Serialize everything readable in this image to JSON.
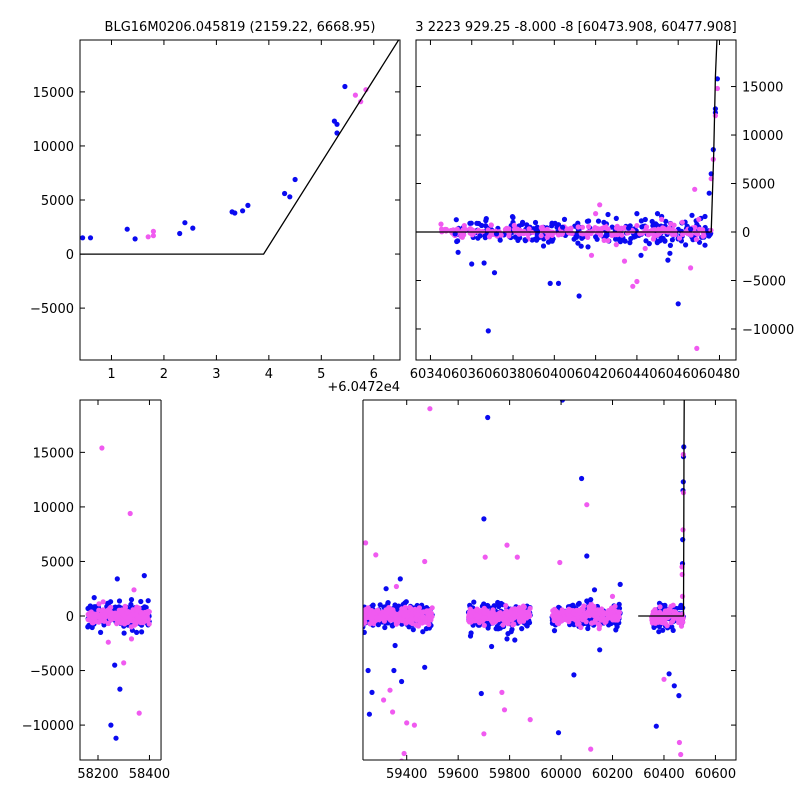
{
  "figure": {
    "background": "#ffffff",
    "colors": {
      "blue": "#0a0af0",
      "pink": "#f05af0",
      "model": "#000000"
    }
  },
  "chart_data": [
    {
      "id": "zoom",
      "type": "scatter",
      "title": "BLG16M0206.045819 (2159.22, 6668.95)",
      "xlim": [
        0.4,
        6.5
      ],
      "ylim": [
        -9800,
        19800
      ],
      "xticks": [
        1,
        2,
        3,
        4,
        5,
        6
      ],
      "xtick_labels": [
        "1",
        "2",
        "3",
        "4",
        "5",
        "6"
      ],
      "yticks": [
        -5000,
        0,
        5000,
        10000,
        15000
      ],
      "ytick_labels": [
        "−5000",
        "0",
        "5000",
        "10000",
        "15000"
      ],
      "yaxis_side": "left",
      "x_offset_label": "+6.0472e4",
      "series": [
        {
          "color": "blue",
          "points": [
            [
              0.45,
              1500
            ],
            [
              0.6,
              1500
            ],
            [
              1.3,
              2300
            ],
            [
              1.45,
              1400
            ],
            [
              2.3,
              1900
            ],
            [
              2.4,
              2900
            ],
            [
              2.55,
              2400
            ],
            [
              3.3,
              3900
            ],
            [
              3.35,
              3800
            ],
            [
              3.5,
              4000
            ],
            [
              3.6,
              4500
            ],
            [
              4.3,
              5600
            ],
            [
              4.4,
              5300
            ],
            [
              4.5,
              6900
            ],
            [
              5.25,
              12300
            ],
            [
              5.3,
              11200
            ],
            [
              5.3,
              12000
            ],
            [
              5.45,
              15500
            ]
          ]
        },
        {
          "color": "pink",
          "points": [
            [
              1.7,
              1600
            ],
            [
              1.8,
              1700
            ],
            [
              1.8,
              2100
            ],
            [
              5.65,
              14700
            ],
            [
              5.75,
              14100
            ],
            [
              5.85,
              15200
            ]
          ]
        }
      ],
      "model": [
        [
          0.4,
          0
        ],
        [
          3.9,
          0
        ],
        [
          6.5,
          20000
        ]
      ]
    },
    {
      "id": "recent",
      "type": "scatter",
      "title": "3 2223 929.25 -8.000 -8 [60473.908, 60477.908]",
      "xlim": [
        60333,
        60488
      ],
      "ylim": [
        -13200,
        19800
      ],
      "xticks": [
        60340,
        60360,
        60380,
        60400,
        60420,
        60440,
        60460,
        60480
      ],
      "xtick_labels": [
        "60340",
        "60360",
        "60380",
        "60400",
        "60420",
        "60440",
        "60460",
        "60480"
      ],
      "yticks": [
        -10000,
        -5000,
        0,
        5000,
        10000,
        15000
      ],
      "ytick_labels": [
        "−10000",
        "−5000",
        "0",
        "5000",
        "10000",
        "15000"
      ],
      "yaxis_side": "right",
      "series": [
        {
          "color": "blue",
          "points": [
            [
              60352,
              -200
            ],
            [
              60360,
              -3300
            ],
            [
              60364,
              -400
            ],
            [
              60366,
              -3200
            ],
            [
              60368,
              -10200
            ],
            [
              60371,
              -4200
            ],
            [
              60372,
              -200
            ],
            [
              60380,
              1500
            ],
            [
              60386,
              -900
            ],
            [
              60391,
              300
            ],
            [
              60398,
              -5300
            ],
            [
              60402,
              -5300
            ],
            [
              60404,
              500
            ],
            [
              60412,
              -6600
            ],
            [
              60416,
              1100
            ],
            [
              60420,
              -500
            ],
            [
              60424,
              1000
            ],
            [
              60426,
              1800
            ],
            [
              60430,
              1400
            ],
            [
              60432,
              -1000
            ],
            [
              60436,
              400
            ],
            [
              60440,
              1900
            ],
            [
              60442,
              -2400
            ],
            [
              60446,
              -1200
            ],
            [
              60450,
              1900
            ],
            [
              60452,
              1600
            ],
            [
              60454,
              1100
            ],
            [
              60455,
              -2900
            ],
            [
              60456,
              -2200
            ],
            [
              60460,
              -7400
            ],
            [
              60466,
              300
            ],
            [
              60471,
              1400
            ],
            [
              60473,
              1600
            ],
            [
              60475,
              4000
            ],
            [
              60476,
              6000
            ],
            [
              60477,
              8500
            ],
            [
              60478,
              12300
            ],
            [
              60478,
              12700
            ],
            [
              60479,
              15800
            ]
          ]
        },
        {
          "color": "pink",
          "points": [
            [
              60350,
              100
            ],
            [
              60353,
              300
            ],
            [
              60378,
              -400
            ],
            [
              60382,
              300
            ],
            [
              60396,
              200
            ],
            [
              60402,
              -300
            ],
            [
              60418,
              -2400
            ],
            [
              60420,
              1900
            ],
            [
              60422,
              2800
            ],
            [
              60426,
              -900
            ],
            [
              60430,
              -1300
            ],
            [
              60434,
              -3000
            ],
            [
              60438,
              -5600
            ],
            [
              60440,
              -5100
            ],
            [
              60444,
              -1700
            ],
            [
              60452,
              1300
            ],
            [
              60458,
              700
            ],
            [
              60462,
              1000
            ],
            [
              60466,
              -3700
            ],
            [
              60468,
              4400
            ],
            [
              60469,
              -12000
            ],
            [
              60470,
              1300
            ],
            [
              60476,
              5500
            ],
            [
              60477,
              7500
            ],
            [
              60478,
              12000
            ],
            [
              60479,
              14800
            ]
          ]
        }
      ],
      "bands": [
        {
          "color": "blue",
          "x0": 60352,
          "x1": 60476,
          "ysd": 600,
          "n": 260
        },
        {
          "color": "pink",
          "x0": 60345,
          "x1": 60476,
          "ysd": 300,
          "n": 200
        }
      ],
      "model": [
        [
          60333,
          0
        ],
        [
          60476,
          0
        ],
        [
          60477.2,
          8000
        ],
        [
          60478,
          16000
        ],
        [
          60479,
          21000
        ]
      ]
    },
    {
      "id": "full",
      "type": "scatter",
      "title": "",
      "xlim": [
        58130,
        60680
      ],
      "ylim": [
        -13200,
        19800
      ],
      "xticks": [
        58200,
        58400,
        59400,
        59600,
        59800,
        60000,
        60200,
        60400,
        60600
      ],
      "xtick_labels": [
        "58200",
        "58400",
        "59400",
        "59600",
        "59800",
        "60000",
        "60200",
        "60400",
        "60600"
      ],
      "yticks": [
        -10000,
        -5000,
        0,
        5000,
        10000,
        15000
      ],
      "ytick_labels": [
        "−10000",
        "−5000",
        "0",
        "5000",
        "10000",
        "15000"
      ],
      "yaxis_side": "left",
      "axis_breaks": [
        [
          58445,
          59230
        ]
      ],
      "series": [
        {
          "color": "blue",
          "points": [
            [
              58210,
              -1500
            ],
            [
              58250,
              -10000
            ],
            [
              58265,
              -4500
            ],
            [
              58270,
              -11200
            ],
            [
              58275,
              3400
            ],
            [
              58285,
              -6700
            ],
            [
              58330,
              1500
            ],
            [
              58350,
              -1500
            ],
            [
              58380,
              3700
            ],
            [
              58395,
              1400
            ],
            [
              59235,
              -1500
            ],
            [
              59250,
              -5000
            ],
            [
              59255,
              -9000
            ],
            [
              59265,
              -7000
            ],
            [
              59290,
              -800
            ],
            [
              59320,
              2500
            ],
            [
              59350,
              -5000
            ],
            [
              59355,
              -2700
            ],
            [
              59375,
              3400
            ],
            [
              59380,
              -6000
            ],
            [
              59470,
              -4700
            ],
            [
              59690,
              -7100
            ],
            [
              59700,
              8900
            ],
            [
              59715,
              18200
            ],
            [
              59730,
              -2800
            ],
            [
              59790,
              -2100
            ],
            [
              59820,
              -2200
            ],
            [
              59990,
              -10700
            ],
            [
              60005,
              19800
            ],
            [
              60050,
              -5400
            ],
            [
              60080,
              12600
            ],
            [
              60100,
              5500
            ],
            [
              60115,
              1500
            ],
            [
              60130,
              2400
            ],
            [
              60150,
              -3100
            ],
            [
              60230,
              2900
            ],
            [
              60370,
              -10100
            ],
            [
              60420,
              -5300
            ],
            [
              60440,
              -6400
            ],
            [
              60458,
              -7300
            ],
            [
              60472,
              4800
            ],
            [
              60473,
              7000
            ],
            [
              60474,
              11500
            ],
            [
              60475,
              12300
            ],
            [
              60476,
              14600
            ],
            [
              60477,
              15500
            ]
          ]
        },
        {
          "color": "pink",
          "points": [
            [
              58215,
              15400
            ],
            [
              58220,
              1300
            ],
            [
              58240,
              -2400
            ],
            [
              58300,
              -4300
            ],
            [
              58325,
              9400
            ],
            [
              58330,
              -2100
            ],
            [
              58340,
              2400
            ],
            [
              58360,
              -8900
            ],
            [
              59240,
              6700
            ],
            [
              59280,
              5600
            ],
            [
              59310,
              -7700
            ],
            [
              59335,
              -6800
            ],
            [
              59345,
              -8800
            ],
            [
              59360,
              2700
            ],
            [
              59380,
              -13300
            ],
            [
              59390,
              -12600
            ],
            [
              59400,
              -9800
            ],
            [
              59430,
              -10000
            ],
            [
              59470,
              5000
            ],
            [
              59490,
              19000
            ],
            [
              59700,
              -10800
            ],
            [
              59705,
              5400
            ],
            [
              59770,
              -7000
            ],
            [
              59780,
              -8600
            ],
            [
              59790,
              6500
            ],
            [
              59830,
              5400
            ],
            [
              59880,
              -9500
            ],
            [
              59995,
              4900
            ],
            [
              60100,
              10200
            ],
            [
              60115,
              -12200
            ],
            [
              60150,
              -900
            ],
            [
              60200,
              1800
            ],
            [
              60400,
              -5800
            ],
            [
              60460,
              -11600
            ],
            [
              60465,
              -12700
            ],
            [
              60470,
              4500
            ],
            [
              60471,
              3800
            ],
            [
              60472,
              1800
            ],
            [
              60474,
              7900
            ],
            [
              60475,
              14800
            ],
            [
              60476,
              11300
            ]
          ]
        }
      ],
      "bands": [
        {
          "color": "blue",
          "x0": 58160,
          "x1": 58400,
          "ysd": 550,
          "n": 200
        },
        {
          "color": "pink",
          "x0": 58160,
          "x1": 58400,
          "ysd": 350,
          "n": 220
        },
        {
          "color": "blue",
          "x0": 59220,
          "x1": 59500,
          "ysd": 550,
          "n": 220
        },
        {
          "color": "pink",
          "x0": 59220,
          "x1": 59500,
          "ysd": 350,
          "n": 240
        },
        {
          "color": "blue",
          "x0": 59640,
          "x1": 59880,
          "ysd": 550,
          "n": 200
        },
        {
          "color": "pink",
          "x0": 59640,
          "x1": 59880,
          "ysd": 350,
          "n": 220
        },
        {
          "color": "blue",
          "x0": 59965,
          "x1": 60230,
          "ysd": 550,
          "n": 210
        },
        {
          "color": "pink",
          "x0": 59965,
          "x1": 60230,
          "ysd": 350,
          "n": 230
        },
        {
          "color": "blue",
          "x0": 60360,
          "x1": 60476,
          "ysd": 550,
          "n": 110
        },
        {
          "color": "pink",
          "x0": 60350,
          "x1": 60476,
          "ysd": 350,
          "n": 90
        }
      ],
      "model": [
        [
          60300,
          0
        ],
        [
          60476,
          0
        ],
        [
          60477.2,
          8000
        ],
        [
          60478,
          16000
        ],
        [
          60479,
          21000
        ]
      ]
    }
  ]
}
